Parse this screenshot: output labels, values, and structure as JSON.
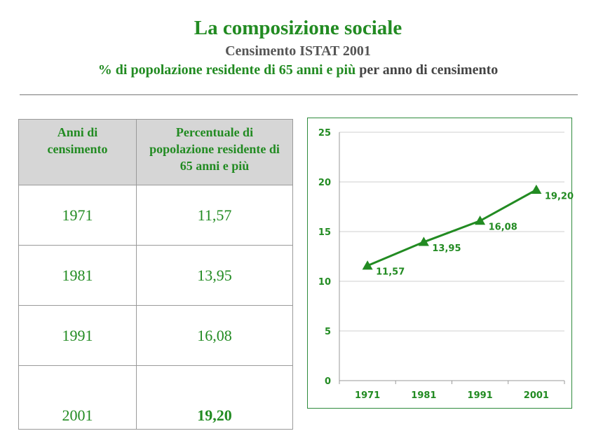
{
  "header": {
    "title": "La composizione sociale",
    "subtitle": "Censimento ISTAT 2001",
    "subtitle2_green": "% di popolazione residente di 65 anni e più",
    "subtitle2_dark": "per anno di censimento"
  },
  "table": {
    "headers": [
      "Anni di censimento",
      "Percentuale di popolazione residente di 65 anni e più"
    ],
    "rows": [
      [
        "1971",
        "11,57"
      ],
      [
        "1981",
        "13,95"
      ],
      [
        "1991",
        "16,08"
      ],
      [
        "2001",
        "19,20"
      ]
    ]
  },
  "colors": {
    "accent": "#228b22",
    "header_bg": "#d6d6d6"
  },
  "chart_data": {
    "type": "line",
    "categories": [
      "1971",
      "1981",
      "1991",
      "2001"
    ],
    "series": [
      {
        "values": [
          11.57,
          13.95,
          16.08,
          19.2
        ]
      }
    ],
    "data_labels": [
      "11,57",
      "13,95",
      "16,08",
      "19,20"
    ],
    "y_ticks": [
      "0",
      "5",
      "10",
      "15",
      "20",
      "25"
    ],
    "ylim": [
      0,
      25
    ],
    "grid": true,
    "marker": "triangle",
    "title": "",
    "xlabel": "",
    "ylabel": ""
  }
}
